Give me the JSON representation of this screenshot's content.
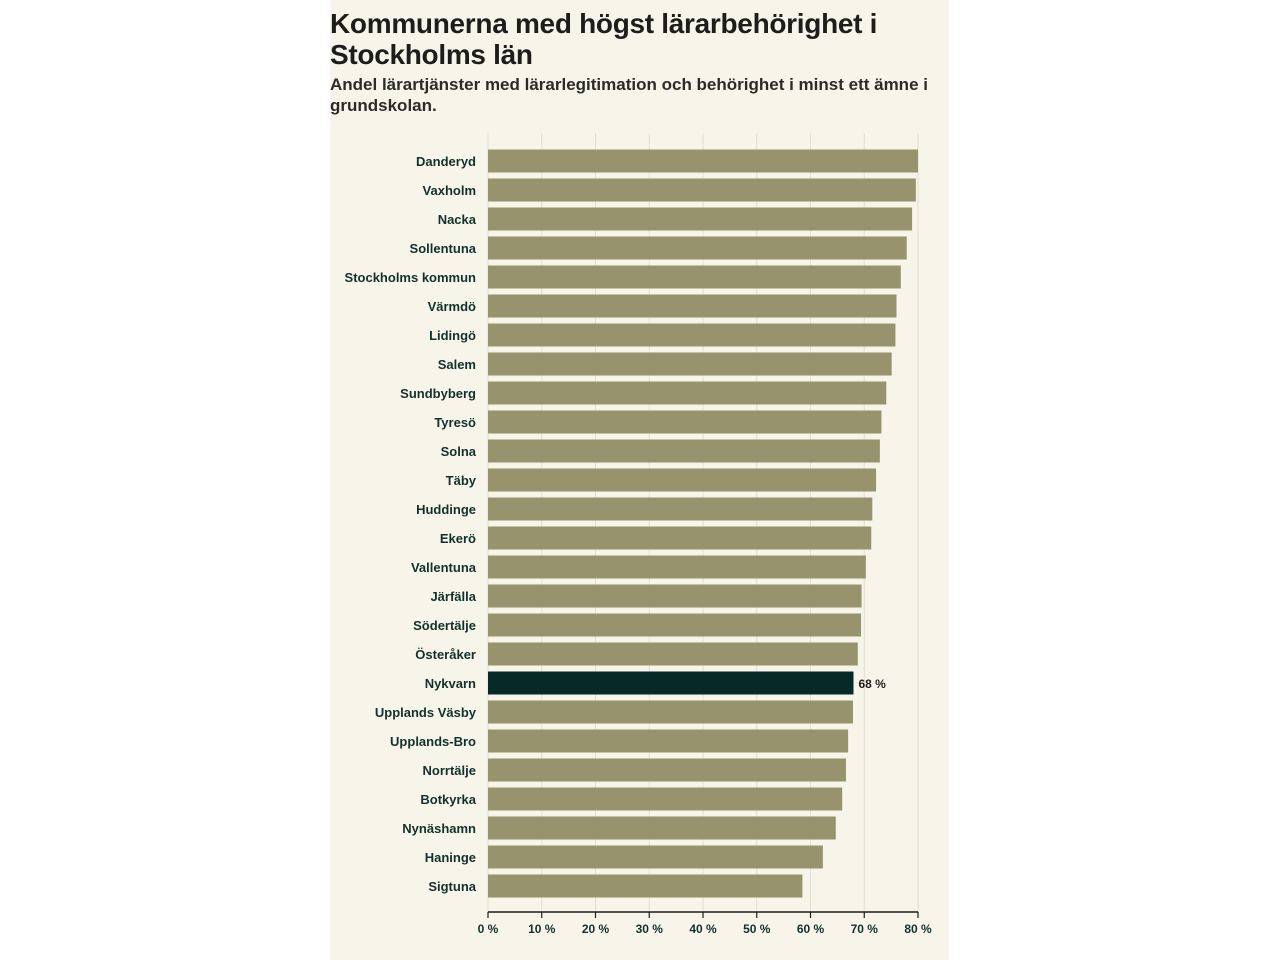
{
  "title": "Kommunerna med högst lärarbehörighet i Stockholms län",
  "subtitle": "Andel lärartjänster med lärarlegitimation och behörighet i minst ett ämne i grundskolan.",
  "colors": {
    "bar": "#96936d",
    "highlight": "#062a27",
    "grid": "#e2dfd0",
    "background": "#f7f5ea"
  },
  "chart_data": {
    "type": "bar",
    "orientation": "horizontal",
    "title": "Kommunerna med högst lärarbehörighet i Stockholms län",
    "subtitle": "Andel lärartjänster med lärarlegitimation och behörighet i minst ett ämne i grundskolan.",
    "categories": [
      "Danderyd",
      "Vaxholm",
      "Nacka",
      "Sollentuna",
      "Stockholms kommun",
      "Värmdö",
      "Lidingö",
      "Salem",
      "Sundbyberg",
      "Tyresö",
      "Solna",
      "Täby",
      "Huddinge",
      "Ekerö",
      "Vallentuna",
      "Järfälla",
      "Södertälje",
      "Österåker",
      "Nykvarn",
      "Upplands Väsby",
      "Upplands-Bro",
      "Norrtälje",
      "Botkyrka",
      "Nynäshamn",
      "Haninge",
      "Sigtuna"
    ],
    "values": [
      80.0,
      79.6,
      78.9,
      77.9,
      76.8,
      76.0,
      75.8,
      75.1,
      74.1,
      73.2,
      72.9,
      72.2,
      71.5,
      71.3,
      70.3,
      69.5,
      69.4,
      68.8,
      68.0,
      67.9,
      67.0,
      66.6,
      65.9,
      64.7,
      62.3,
      58.5
    ],
    "highlight": "Nykvarn",
    "data_labels": {
      "Nykvarn": "68 %"
    },
    "xlim": [
      0,
      80
    ],
    "xticks": [
      0,
      10,
      20,
      30,
      40,
      50,
      60,
      70,
      80
    ],
    "xtick_labels": [
      "0 %",
      "10 %",
      "20 %",
      "30 %",
      "40 %",
      "50 %",
      "60 %",
      "70 %",
      "80 %"
    ],
    "xlabel": "",
    "ylabel": "",
    "grid": true,
    "legend": "none"
  }
}
